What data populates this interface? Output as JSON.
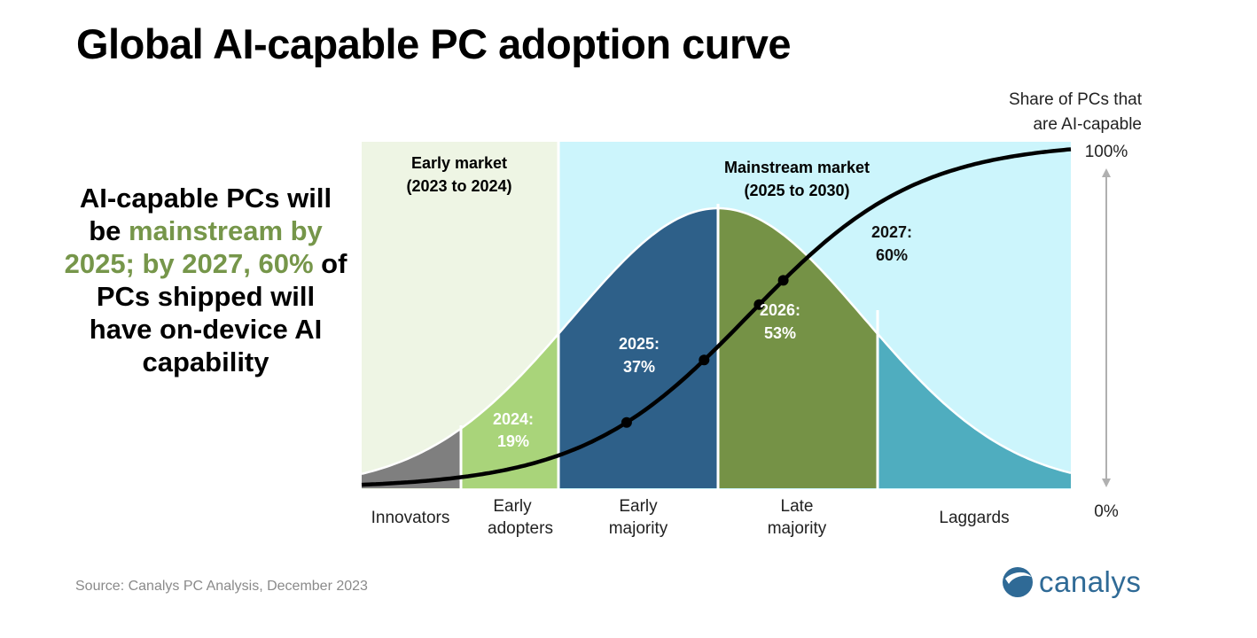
{
  "title": "Global AI-capable PC adoption curve",
  "callout": {
    "parts": [
      {
        "text": "AI-capable PCs will be ",
        "highlight": false
      },
      {
        "text": "mainstream by 2025; by 2027, 60%",
        "highlight": true
      },
      {
        "text": " of PCs shipped will have on-device AI capability",
        "highlight": false
      }
    ]
  },
  "source": "Source: Canalys PC Analysis, December 2023",
  "logo": {
    "text": "canalys",
    "icon": "canalys-logo-icon"
  },
  "colors": {
    "early_market_bg": "#eef5e4",
    "mainstream_bg": "#ccf5fc",
    "innovators": "#7f7f7f",
    "early_adopters": "#a9d47a",
    "early_majority": "#2e6089",
    "late_majority": "#759246",
    "laggards": "#4fadbf",
    "highlight_text": "#76964a",
    "logo": "#2f6a96"
  },
  "chart_data": {
    "type": "area",
    "title": "Global AI-capable PC adoption curve",
    "y_axis_label": "Share of PCs that are AI-capable",
    "ylim": [
      0,
      100
    ],
    "y_ticks": [
      "0%",
      "100%"
    ],
    "markets": [
      {
        "label": "Early market",
        "period": "(2023 to 2024)"
      },
      {
        "label": "Mainstream market",
        "period": "(2025 to 2030)"
      }
    ],
    "segments": [
      {
        "name": "Innovators",
        "label_lines": [
          "Innovators"
        ]
      },
      {
        "name": "Early adopters",
        "label_lines": [
          "Early",
          "adopters"
        ]
      },
      {
        "name": "Early majority",
        "label_lines": [
          "Early",
          "majority"
        ]
      },
      {
        "name": "Late majority",
        "label_lines": [
          "Late",
          "majority"
        ]
      },
      {
        "name": "Laggards",
        "label_lines": [
          "Laggards"
        ]
      }
    ],
    "adoption_points": [
      {
        "year": "2024",
        "value": 19,
        "label": "2024:",
        "value_label": "19%"
      },
      {
        "year": "2025",
        "value": 37,
        "label": "2025:",
        "value_label": "37%"
      },
      {
        "year": "2026",
        "value": 53,
        "label": "2026:",
        "value_label": "53%"
      },
      {
        "year": "2027",
        "value": 60,
        "label": "2027:",
        "value_label": "60%"
      }
    ]
  }
}
